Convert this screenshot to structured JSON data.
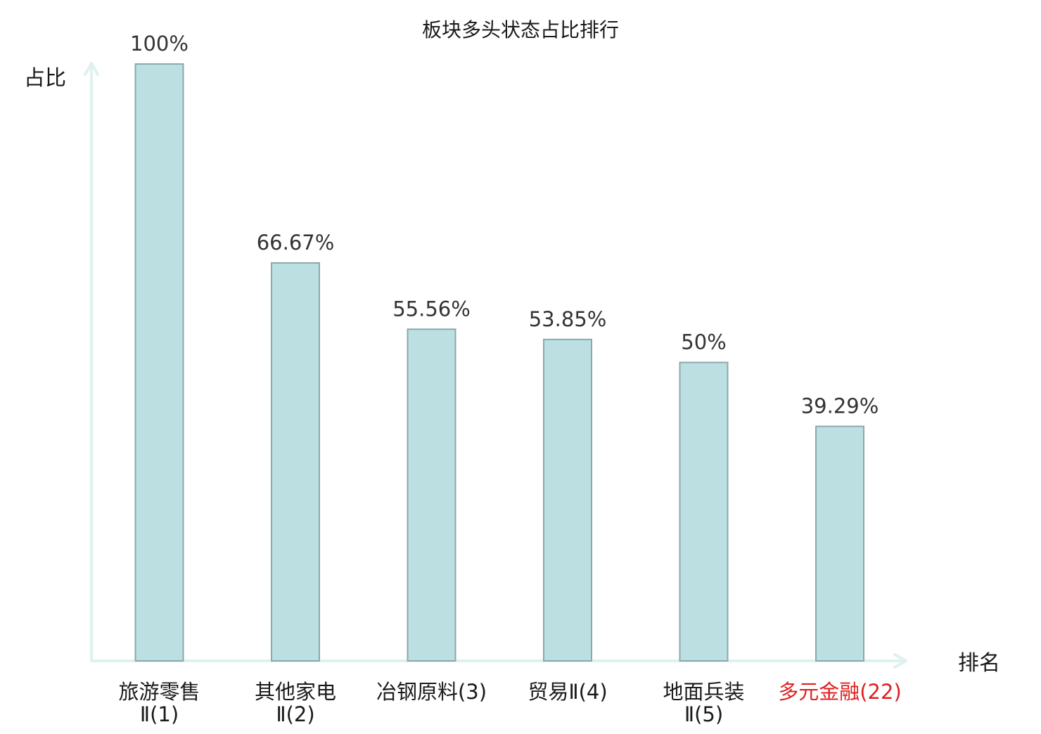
{
  "chart_data": {
    "type": "bar",
    "title": "板块多头状态占比排行",
    "ylabel": "占比",
    "xlabel": "排名",
    "ylim": [
      0,
      100
    ],
    "grid": false,
    "categories": [
      {
        "lines": [
          "旅游零售",
          "Ⅱ(1)"
        ],
        "highlight": false
      },
      {
        "lines": [
          "其他家电",
          "Ⅱ(2)"
        ],
        "highlight": false
      },
      {
        "lines": [
          "冶钢原料(3)"
        ],
        "highlight": false
      },
      {
        "lines": [
          "贸易Ⅱ(4)"
        ],
        "highlight": false
      },
      {
        "lines": [
          "地面兵装",
          "Ⅱ(5)"
        ],
        "highlight": false
      },
      {
        "lines": [
          "多元金融(22)"
        ],
        "highlight": true
      }
    ],
    "values": [
      100,
      66.67,
      55.56,
      53.85,
      50,
      39.29
    ],
    "value_labels": [
      "100%",
      "66.67%",
      "55.56%",
      "53.85%",
      "50%",
      "39.29%"
    ],
    "colors": {
      "bar_fill": "#bce0e2",
      "bar_stroke": "#8aa9ab",
      "axis": "#dff1ee",
      "text": "#1a1a1a",
      "value_text": "#333333",
      "highlight_text": "#e02020"
    }
  }
}
